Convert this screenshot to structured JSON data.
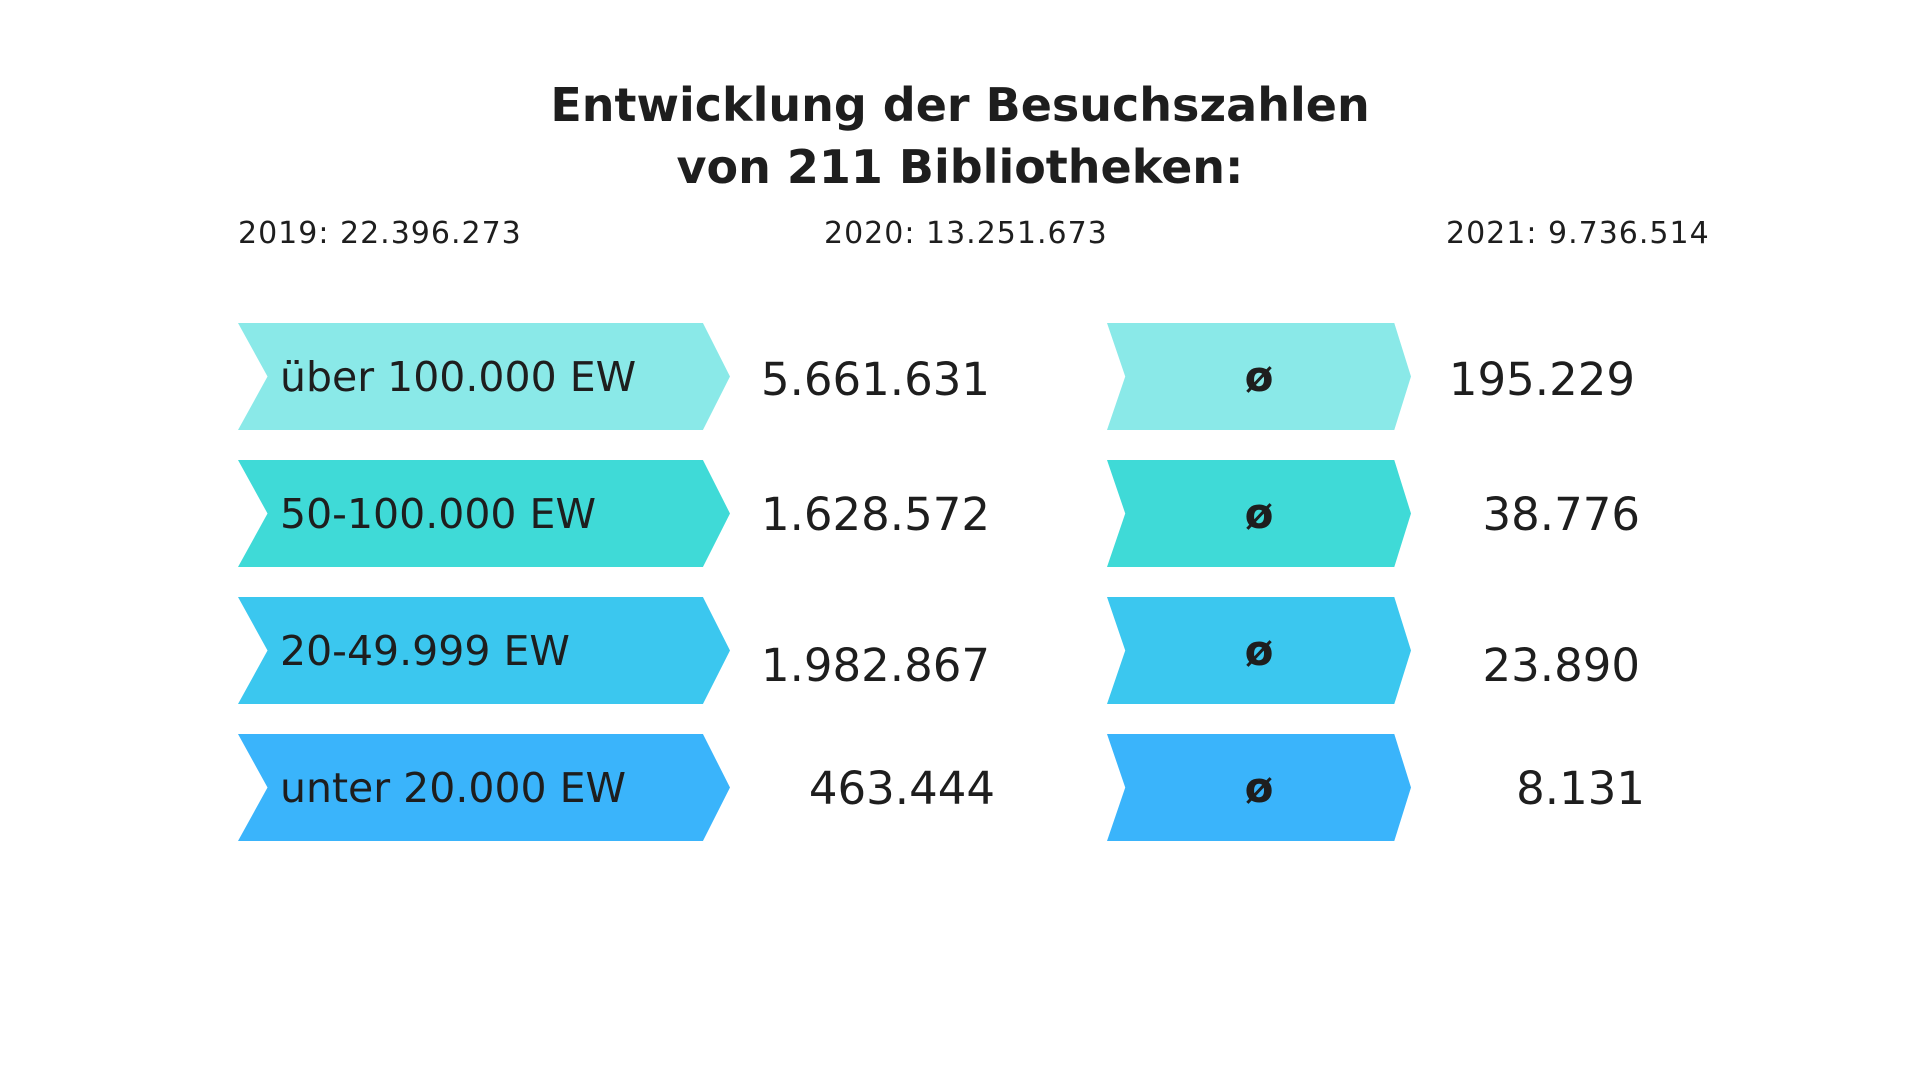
{
  "title": {
    "line1": "Entwicklung der Besuchszahlen",
    "line2": "von 211 Bibliotheken:"
  },
  "years": [
    {
      "text": "2019: 22.396.273"
    },
    {
      "text": "2020: 13.251.673"
    },
    {
      "text": "2021: 9.736.514"
    }
  ],
  "rows": [
    {
      "label": "über 100.000 EW",
      "total": "5.661.631",
      "avg_symbol": "ø",
      "avg": "195.229",
      "color": "#8ae9e8"
    },
    {
      "label": "50-100.000 EW",
      "total": "1.628.572",
      "avg_symbol": "ø",
      "avg": "38.776",
      "color": "#3fdad7"
    },
    {
      "label": "20-49.999 EW",
      "total": "1.982.867",
      "avg_symbol": "ø",
      "avg": "23.890",
      "color": "#3bc7ef"
    },
    {
      "label": "unter 20.000 EW",
      "total": "463.444",
      "avg_symbol": "ø",
      "avg": "8.131",
      "color": "#3ab4fb"
    }
  ]
}
